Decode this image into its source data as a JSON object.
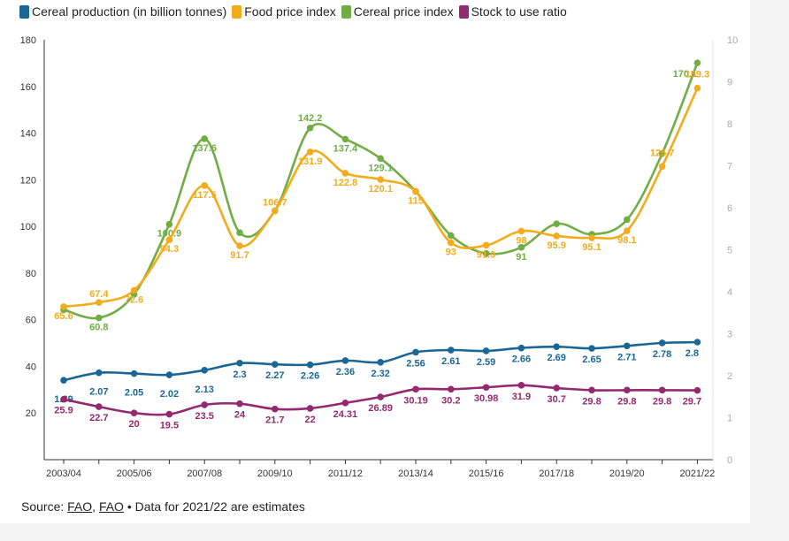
{
  "legend": {
    "items": [
      {
        "label": "Cereal production (in billion tonnes)",
        "color": "#1a6796"
      },
      {
        "label": "Food price index",
        "color": "#f2ac1b"
      },
      {
        "label": "Cereal price index",
        "color": "#71ad45"
      },
      {
        "label": "Stock to use ratio",
        "color": "#94296f"
      }
    ]
  },
  "footer": {
    "prefix": "Source: ",
    "link1": "FAO",
    "sep": ", ",
    "link2": "FAO",
    "suffix": " • Data for 2021/22 are estimates"
  },
  "chart_data": {
    "type": "line",
    "x_tick_labels": [
      "2003/04",
      "2005/06",
      "2007/08",
      "2009/10",
      "2011/12",
      "2013/14",
      "2015/16",
      "2017/18",
      "2019/20",
      "2021/22"
    ],
    "y_left": {
      "min": 0,
      "max": 180,
      "ticks": [
        20,
        40,
        60,
        80,
        100,
        120,
        140,
        160,
        180
      ]
    },
    "y_right": {
      "min": 0,
      "max": 10,
      "ticks": [
        0,
        1,
        2,
        3,
        4,
        5,
        6,
        7,
        8,
        9,
        10
      ]
    },
    "series": [
      {
        "name": "Cereal price index",
        "color": "#71ad45",
        "axis": "left",
        "values": [
          64.3,
          60.8,
          70.9,
          100.9,
          137.6,
          97.3,
          106.7,
          142.2,
          137.4,
          129.1,
          115.0,
          96.1,
          88.4,
          91.0,
          101.1,
          96.6,
          102.9,
          131.2,
          170.1
        ],
        "labels": [
          {
            "i": 0,
            "text": ""
          },
          {
            "i": 1,
            "text": "60.8"
          },
          {
            "i": 4,
            "text": "137.6"
          },
          {
            "i": 3,
            "text": "100.9"
          },
          {
            "i": 7,
            "text": "142.2"
          },
          {
            "i": 8,
            "text": "137.4"
          },
          {
            "i": 9,
            "text": "129.1"
          },
          {
            "i": 13,
            "text": "91"
          },
          {
            "i": 18,
            "text": "170.1"
          }
        ]
      },
      {
        "name": "Food price index",
        "color": "#f2ac1b",
        "axis": "left",
        "values": [
          65.6,
          67.4,
          72.6,
          94.3,
          117.5,
          91.7,
          106.7,
          131.9,
          122.8,
          120.1,
          115.0,
          93.0,
          91.9,
          98.0,
          95.9,
          95.1,
          98.1,
          125.7,
          159.3
        ],
        "labels": [
          "65.6",
          "67.4",
          "72.6",
          "94.3",
          "117.5",
          "91.7",
          "106.7",
          "131.9",
          "122.8",
          "120.1",
          "115",
          "93",
          "91.9",
          "98",
          "95.9",
          "95.1",
          "98.1",
          "125.7",
          "159.3"
        ]
      },
      {
        "name": "Cereal production (in billion tonnes)",
        "color": "#1a6796",
        "axis": "right",
        "values": [
          1.89,
          2.07,
          2.05,
          2.02,
          2.13,
          2.3,
          2.27,
          2.26,
          2.36,
          2.32,
          2.56,
          2.61,
          2.59,
          2.66,
          2.69,
          2.65,
          2.71,
          2.78,
          2.8
        ],
        "labels": [
          "1.89",
          "2.07",
          "2.05",
          "2.02",
          "2.13",
          "2.3",
          "2.27",
          "2.26",
          "2.36",
          "2.32",
          "2.56",
          "2.61",
          "2.59",
          "2.66",
          "2.69",
          "2.65",
          "2.71",
          "2.78",
          "2.8"
        ]
      },
      {
        "name": "Stock to use ratio",
        "color": "#94296f",
        "axis": "left",
        "values": [
          25.9,
          22.7,
          20,
          19.5,
          23.5,
          24,
          21.7,
          22,
          24.31,
          26.89,
          30.19,
          30.2,
          30.98,
          31.9,
          30.7,
          29.8,
          29.8,
          29.8,
          29.7
        ],
        "labels": [
          "25.9",
          "22.7",
          "20",
          "19.5",
          "23.5",
          "24",
          "21.7",
          "22",
          "24.31",
          "26.89",
          "30.19",
          "30.2",
          "30.98",
          "31.9",
          "30.7",
          "29.8",
          "29.8",
          "29.8",
          "29.7"
        ]
      }
    ]
  }
}
